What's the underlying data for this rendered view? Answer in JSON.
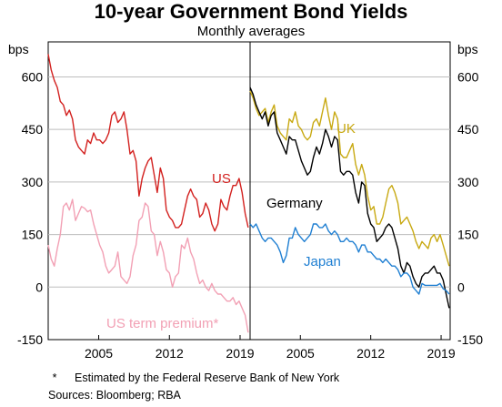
{
  "chart": {
    "title": "10-year Government Bond Yields",
    "subtitle": "Monthly averages",
    "footnote_marker": "*",
    "footnote": "Estimated by the Federal Reserve Bank of New York",
    "sources": "Sources: Bloomberg; RBA"
  },
  "chart_data": [
    {
      "type": "line",
      "panel": "left",
      "ylabel": "bps",
      "ylim": [
        -150,
        700
      ],
      "xlim": [
        2000.0,
        2019.9
      ],
      "yticks": [
        -150,
        0,
        150,
        300,
        450,
        600
      ],
      "xticks": [
        2005,
        2012,
        2019
      ],
      "grid": true,
      "series": [
        {
          "name": "US",
          "color": "#d3211f",
          "x": [
            2000.0,
            2000.3,
            2000.6,
            2000.9,
            2001.2,
            2001.5,
            2001.8,
            2002.1,
            2002.4,
            2002.7,
            2003.0,
            2003.3,
            2003.6,
            2003.9,
            2004.2,
            2004.5,
            2004.8,
            2005.1,
            2005.4,
            2005.7,
            2006.0,
            2006.3,
            2006.6,
            2006.9,
            2007.2,
            2007.5,
            2007.8,
            2008.1,
            2008.4,
            2008.7,
            2009.0,
            2009.3,
            2009.6,
            2009.9,
            2010.2,
            2010.5,
            2010.8,
            2011.1,
            2011.4,
            2011.7,
            2012.0,
            2012.3,
            2012.6,
            2012.9,
            2013.2,
            2013.5,
            2013.8,
            2014.1,
            2014.4,
            2014.7,
            2015.0,
            2015.3,
            2015.6,
            2015.9,
            2016.2,
            2016.5,
            2016.8,
            2017.1,
            2017.4,
            2017.7,
            2018.0,
            2018.3,
            2018.6,
            2018.9,
            2019.2,
            2019.5,
            2019.8
          ],
          "values": [
            665,
            620,
            590,
            570,
            530,
            520,
            490,
            505,
            480,
            420,
            400,
            390,
            380,
            420,
            410,
            440,
            420,
            420,
            410,
            420,
            440,
            490,
            500,
            470,
            480,
            500,
            450,
            380,
            390,
            360,
            260,
            310,
            340,
            360,
            370,
            320,
            270,
            340,
            310,
            220,
            200,
            190,
            170,
            170,
            180,
            220,
            260,
            280,
            260,
            250,
            200,
            210,
            240,
            220,
            180,
            160,
            180,
            250,
            230,
            220,
            260,
            290,
            290,
            310,
            270,
            210,
            170
          ]
        },
        {
          "name": "US term premium*",
          "color": "#f2a0b4",
          "x": [
            2000.0,
            2000.3,
            2000.6,
            2000.9,
            2001.2,
            2001.5,
            2001.8,
            2002.1,
            2002.4,
            2002.7,
            2003.0,
            2003.3,
            2003.6,
            2003.9,
            2004.2,
            2004.5,
            2004.8,
            2005.1,
            2005.4,
            2005.7,
            2006.0,
            2006.3,
            2006.6,
            2006.9,
            2007.2,
            2007.5,
            2007.8,
            2008.1,
            2008.4,
            2008.7,
            2009.0,
            2009.3,
            2009.6,
            2009.9,
            2010.2,
            2010.5,
            2010.8,
            2011.1,
            2011.4,
            2011.7,
            2012.0,
            2012.3,
            2012.6,
            2012.9,
            2013.2,
            2013.5,
            2013.8,
            2014.1,
            2014.4,
            2014.7,
            2015.0,
            2015.3,
            2015.6,
            2015.9,
            2016.2,
            2016.5,
            2016.8,
            2017.1,
            2017.4,
            2017.7,
            2018.0,
            2018.3,
            2018.6,
            2018.9,
            2019.2,
            2019.5,
            2019.8
          ],
          "values": [
            120,
            80,
            60,
            110,
            150,
            230,
            240,
            220,
            250,
            190,
            210,
            230,
            225,
            215,
            220,
            180,
            150,
            120,
            100,
            60,
            40,
            50,
            60,
            100,
            30,
            20,
            10,
            30,
            90,
            120,
            190,
            200,
            240,
            230,
            160,
            150,
            90,
            130,
            100,
            50,
            40,
            0,
            30,
            40,
            120,
            110,
            140,
            100,
            80,
            40,
            10,
            20,
            0,
            -10,
            10,
            -10,
            -20,
            -20,
            -30,
            -40,
            -40,
            -30,
            -50,
            -40,
            -60,
            -80,
            -130
          ]
        }
      ]
    },
    {
      "type": "line",
      "panel": "right",
      "ylabel": "bps",
      "ylim": [
        -150,
        700
      ],
      "xlim": [
        2000.0,
        2019.9
      ],
      "yticks": [
        -150,
        0,
        150,
        300,
        450,
        600
      ],
      "xticks": [
        2005,
        2012,
        2019
      ],
      "grid": true,
      "series": [
        {
          "name": "UK",
          "color": "#c8a912",
          "x": [
            2000.0,
            2000.3,
            2000.6,
            2000.9,
            2001.2,
            2001.5,
            2001.8,
            2002.1,
            2002.4,
            2002.7,
            2003.0,
            2003.3,
            2003.6,
            2003.9,
            2004.2,
            2004.5,
            2004.8,
            2005.1,
            2005.4,
            2005.7,
            2006.0,
            2006.3,
            2006.6,
            2006.9,
            2007.2,
            2007.5,
            2007.8,
            2008.1,
            2008.4,
            2008.7,
            2009.0,
            2009.3,
            2009.6,
            2009.9,
            2010.2,
            2010.5,
            2010.8,
            2011.1,
            2011.4,
            2011.7,
            2012.0,
            2012.3,
            2012.6,
            2012.9,
            2013.2,
            2013.5,
            2013.8,
            2014.1,
            2014.4,
            2014.7,
            2015.0,
            2015.3,
            2015.6,
            2015.9,
            2016.2,
            2016.5,
            2016.8,
            2017.1,
            2017.4,
            2017.7,
            2018.0,
            2018.3,
            2018.6,
            2018.9,
            2019.2,
            2019.5,
            2019.8
          ],
          "values": [
            560,
            540,
            510,
            490,
            500,
            510,
            470,
            500,
            520,
            460,
            440,
            430,
            420,
            480,
            470,
            500,
            460,
            450,
            430,
            420,
            430,
            470,
            480,
            460,
            500,
            540,
            490,
            450,
            500,
            480,
            380,
            370,
            370,
            390,
            410,
            350,
            320,
            350,
            320,
            260,
            220,
            230,
            180,
            180,
            200,
            240,
            280,
            290,
            270,
            240,
            180,
            190,
            200,
            180,
            160,
            130,
            110,
            130,
            120,
            110,
            140,
            150,
            130,
            150,
            120,
            90,
            60
          ]
        },
        {
          "name": "Germany",
          "color": "#000000",
          "x": [
            2000.0,
            2000.3,
            2000.6,
            2000.9,
            2001.2,
            2001.5,
            2001.8,
            2002.1,
            2002.4,
            2002.7,
            2003.0,
            2003.3,
            2003.6,
            2003.9,
            2004.2,
            2004.5,
            2004.8,
            2005.1,
            2005.4,
            2005.7,
            2006.0,
            2006.3,
            2006.6,
            2006.9,
            2007.2,
            2007.5,
            2007.8,
            2008.1,
            2008.4,
            2008.7,
            2009.0,
            2009.3,
            2009.6,
            2009.9,
            2010.2,
            2010.5,
            2010.8,
            2011.1,
            2011.4,
            2011.7,
            2012.0,
            2012.3,
            2012.6,
            2012.9,
            2013.2,
            2013.5,
            2013.8,
            2014.1,
            2014.4,
            2014.7,
            2015.0,
            2015.3,
            2015.6,
            2015.9,
            2016.2,
            2016.5,
            2016.8,
            2017.1,
            2017.4,
            2017.7,
            2018.0,
            2018.3,
            2018.6,
            2018.9,
            2019.2,
            2019.5,
            2019.8
          ],
          "values": [
            570,
            550,
            520,
            500,
            480,
            500,
            460,
            490,
            500,
            440,
            420,
            400,
            380,
            430,
            420,
            420,
            390,
            360,
            340,
            320,
            330,
            370,
            400,
            380,
            410,
            450,
            430,
            400,
            430,
            420,
            330,
            320,
            330,
            330,
            320,
            270,
            240,
            300,
            290,
            210,
            180,
            170,
            130,
            140,
            150,
            170,
            180,
            170,
            140,
            110,
            60,
            40,
            70,
            60,
            30,
            10,
            0,
            30,
            40,
            40,
            50,
            60,
            40,
            40,
            20,
            -20,
            -60
          ]
        },
        {
          "name": "Japan",
          "color": "#1f7fd2",
          "x": [
            2000.0,
            2000.3,
            2000.6,
            2000.9,
            2001.2,
            2001.5,
            2001.8,
            2002.1,
            2002.4,
            2002.7,
            2003.0,
            2003.3,
            2003.6,
            2003.9,
            2004.2,
            2004.5,
            2004.8,
            2005.1,
            2005.4,
            2005.7,
            2006.0,
            2006.3,
            2006.6,
            2006.9,
            2007.2,
            2007.5,
            2007.8,
            2008.1,
            2008.4,
            2008.7,
            2009.0,
            2009.3,
            2009.6,
            2009.9,
            2010.2,
            2010.5,
            2010.8,
            2011.1,
            2011.4,
            2011.7,
            2012.0,
            2012.3,
            2012.6,
            2012.9,
            2013.2,
            2013.5,
            2013.8,
            2014.1,
            2014.4,
            2014.7,
            2015.0,
            2015.3,
            2015.6,
            2015.9,
            2016.2,
            2016.5,
            2016.8,
            2017.1,
            2017.4,
            2017.7,
            2018.0,
            2018.3,
            2018.6,
            2018.9,
            2019.2,
            2019.5,
            2019.8
          ],
          "values": [
            180,
            170,
            180,
            160,
            140,
            130,
            140,
            140,
            130,
            120,
            100,
            70,
            90,
            140,
            140,
            170,
            150,
            140,
            130,
            140,
            150,
            180,
            180,
            170,
            170,
            180,
            160,
            150,
            160,
            150,
            130,
            130,
            140,
            130,
            130,
            120,
            100,
            120,
            120,
            100,
            100,
            90,
            80,
            80,
            70,
            80,
            70,
            60,
            60,
            50,
            30,
            40,
            40,
            30,
            0,
            -10,
            -20,
            10,
            5,
            5,
            5,
            5,
            5,
            10,
            -5,
            -10,
            -20
          ]
        }
      ]
    }
  ]
}
